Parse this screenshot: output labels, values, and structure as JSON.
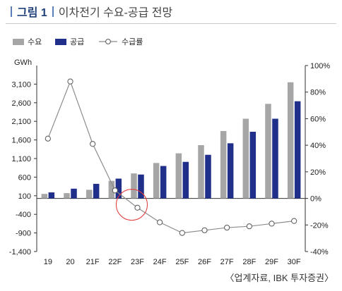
{
  "header": {
    "figure_label": "그림 1",
    "figure_title": "이차전기 수요-공급 전망"
  },
  "source": "〈업계자료, IBK 투자증권〉",
  "colors": {
    "demand": "#a6a6a6",
    "supply": "#1f2f8a",
    "ratio": "#8c8c8c",
    "highlight": "#e23a3a",
    "title_accent": "#5b7fb7"
  },
  "chart_data": {
    "type": "bar+line",
    "categories": [
      "19",
      "20",
      "21F",
      "22F",
      "23F",
      "24F",
      "25F",
      "26F",
      "27F",
      "28F",
      "29F",
      "30F"
    ],
    "series": [
      {
        "name": "수요",
        "type": "bar",
        "axis": "left",
        "values": [
          150,
          170,
          260,
          500,
          700,
          980,
          1240,
          1460,
          1840,
          2170,
          2570,
          3150
        ]
      },
      {
        "name": "공급",
        "type": "bar",
        "axis": "left",
        "values": [
          190,
          290,
          420,
          560,
          670,
          900,
          1010,
          1200,
          1510,
          1820,
          2170,
          2640
        ]
      },
      {
        "name": "수급률",
        "type": "line",
        "axis": "right",
        "values": [
          45,
          88,
          41,
          6,
          -7,
          -18,
          -26,
          -24,
          -22,
          -21,
          -19,
          -17
        ]
      }
    ],
    "y_left": {
      "unit": "GWh",
      "ticks": [
        "3,100",
        "2,600",
        "2,100",
        "1,600",
        "1,100",
        "600",
        "100",
        "-400",
        "-900",
        "-1,400"
      ],
      "min": -1400,
      "max": 3600
    },
    "y_right": {
      "ticks": [
        "100%",
        "80%",
        "60%",
        "40%",
        "20%",
        "0%",
        "-20%",
        "-40%"
      ],
      "min": -40,
      "max": 100
    },
    "legend_position": "top-left",
    "highlight_category": "23F"
  }
}
